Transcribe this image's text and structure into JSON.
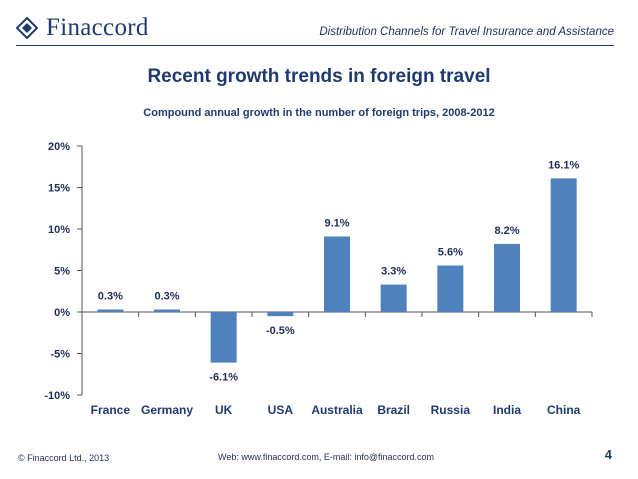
{
  "header": {
    "brand": "Finaccord",
    "section_title": "Distribution Channels for Travel Insurance and Assistance"
  },
  "slide": {
    "title": "Recent growth trends in foreign travel",
    "subtitle": "Compound annual growth in the number of foreign trips, 2008-2012"
  },
  "footer": {
    "copyright": "© Finaccord Ltd., 2013",
    "contact": "Web: www.finaccord.com, E-mail: info@finaccord.com",
    "page_number": "4"
  },
  "colors": {
    "bar": "#4f81bd",
    "axis": "#555555",
    "brand": "#1f3a6e"
  },
  "chart_data": {
    "type": "bar",
    "title": "Compound annual growth in the number of foreign trips, 2008-2012",
    "categories": [
      "France",
      "Germany",
      "UK",
      "USA",
      "Australia",
      "Brazil",
      "Russia",
      "India",
      "China"
    ],
    "values": [
      0.3,
      0.3,
      -6.1,
      -0.5,
      9.1,
      3.3,
      5.6,
      8.2,
      16.1
    ],
    "value_labels": [
      "0.3%",
      "0.3%",
      "-6.1%",
      "-0.5%",
      "9.1%",
      "3.3%",
      "5.6%",
      "8.2%",
      "16.1%"
    ],
    "y_ticks": [
      20,
      15,
      10,
      5,
      0,
      -5,
      -10
    ],
    "y_tick_labels": [
      "20%",
      "15%",
      "10%",
      "5%",
      "0%",
      "-5%",
      "-10%"
    ],
    "ylim": [
      -10,
      20
    ],
    "xlabel": "",
    "ylabel": "",
    "grid": false,
    "legend": "none"
  }
}
